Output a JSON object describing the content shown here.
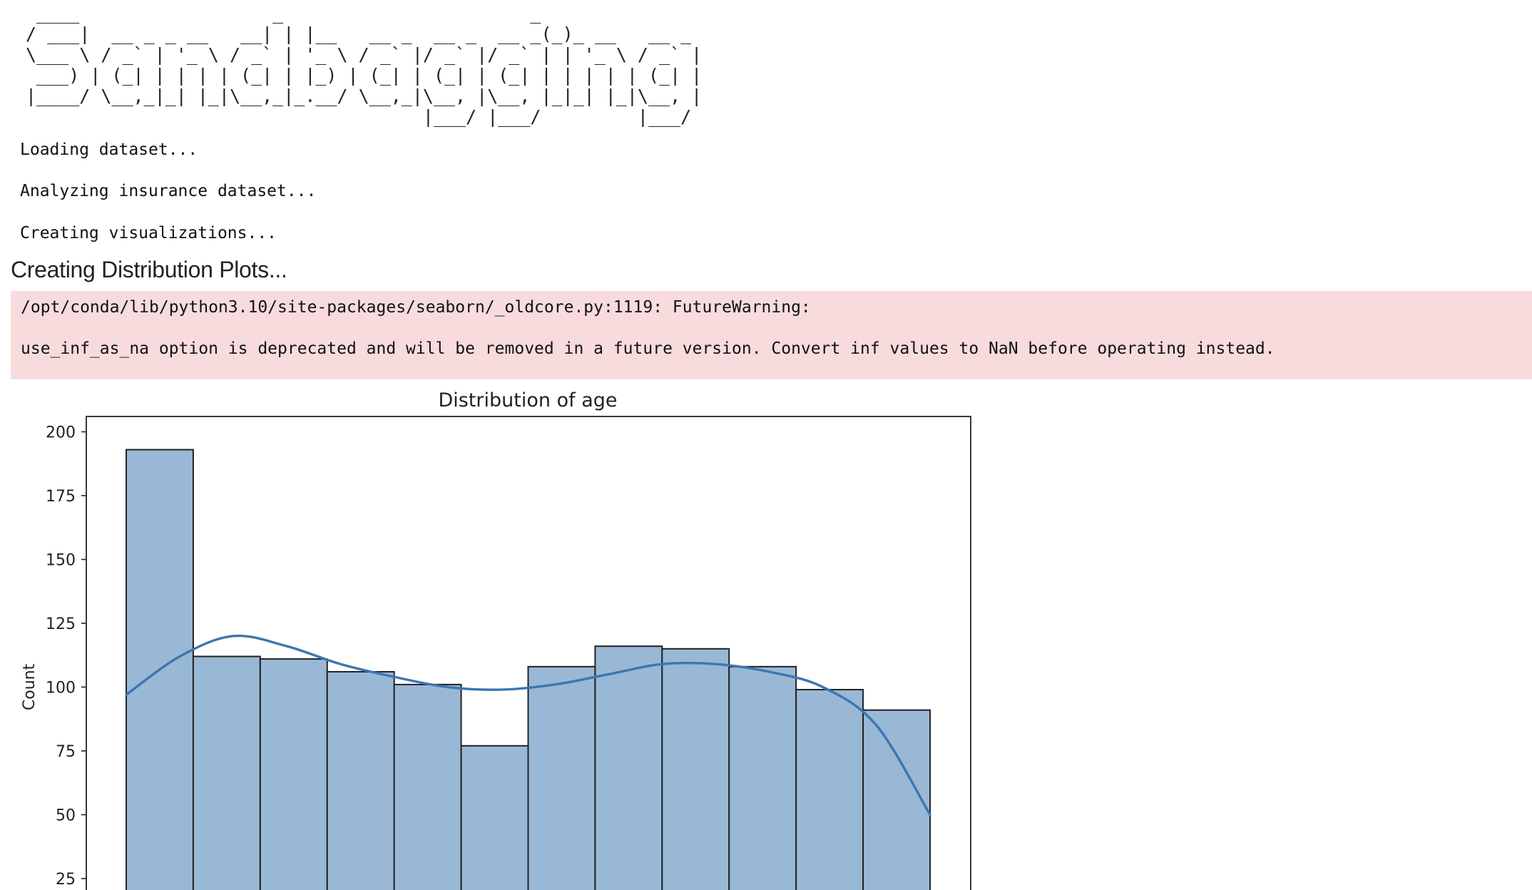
{
  "logo": {
    "text": "Sandbagging"
  },
  "log": {
    "lines": [
      "Loading dataset...",
      "Analyzing insurance dataset...",
      "Creating visualizations..."
    ]
  },
  "section": {
    "heading": "Creating Distribution Plots..."
  },
  "warning": {
    "line1": "/opt/conda/lib/python3.10/site-packages/seaborn/_oldcore.py:1119: FutureWarning:",
    "line2": "use_inf_as_na option is deprecated and will be removed in a future version. Convert inf values to NaN before operating instead."
  },
  "colors": {
    "warning_background": "#f8dcdd",
    "bar_fill": "#99b8d6",
    "bar_edge": "#222222",
    "kde_line": "#3d76b0"
  },
  "chart_data": {
    "type": "bar",
    "subtype": "histogram with kde",
    "title": "Distribution of age",
    "xlabel": "",
    "ylabel": "Count",
    "ylim": [
      18,
      206
    ],
    "yticks": [
      25,
      50,
      75,
      100,
      125,
      150,
      175,
      200
    ],
    "bin_count": 12,
    "values": [
      193,
      112,
      111,
      106,
      101,
      77,
      108,
      116,
      115,
      108,
      99,
      91
    ],
    "kde": [
      97,
      112,
      120,
      116,
      109,
      104,
      100,
      99,
      101,
      105,
      109,
      109,
      106,
      100,
      85,
      50
    ],
    "grid": false,
    "legend": "none"
  }
}
